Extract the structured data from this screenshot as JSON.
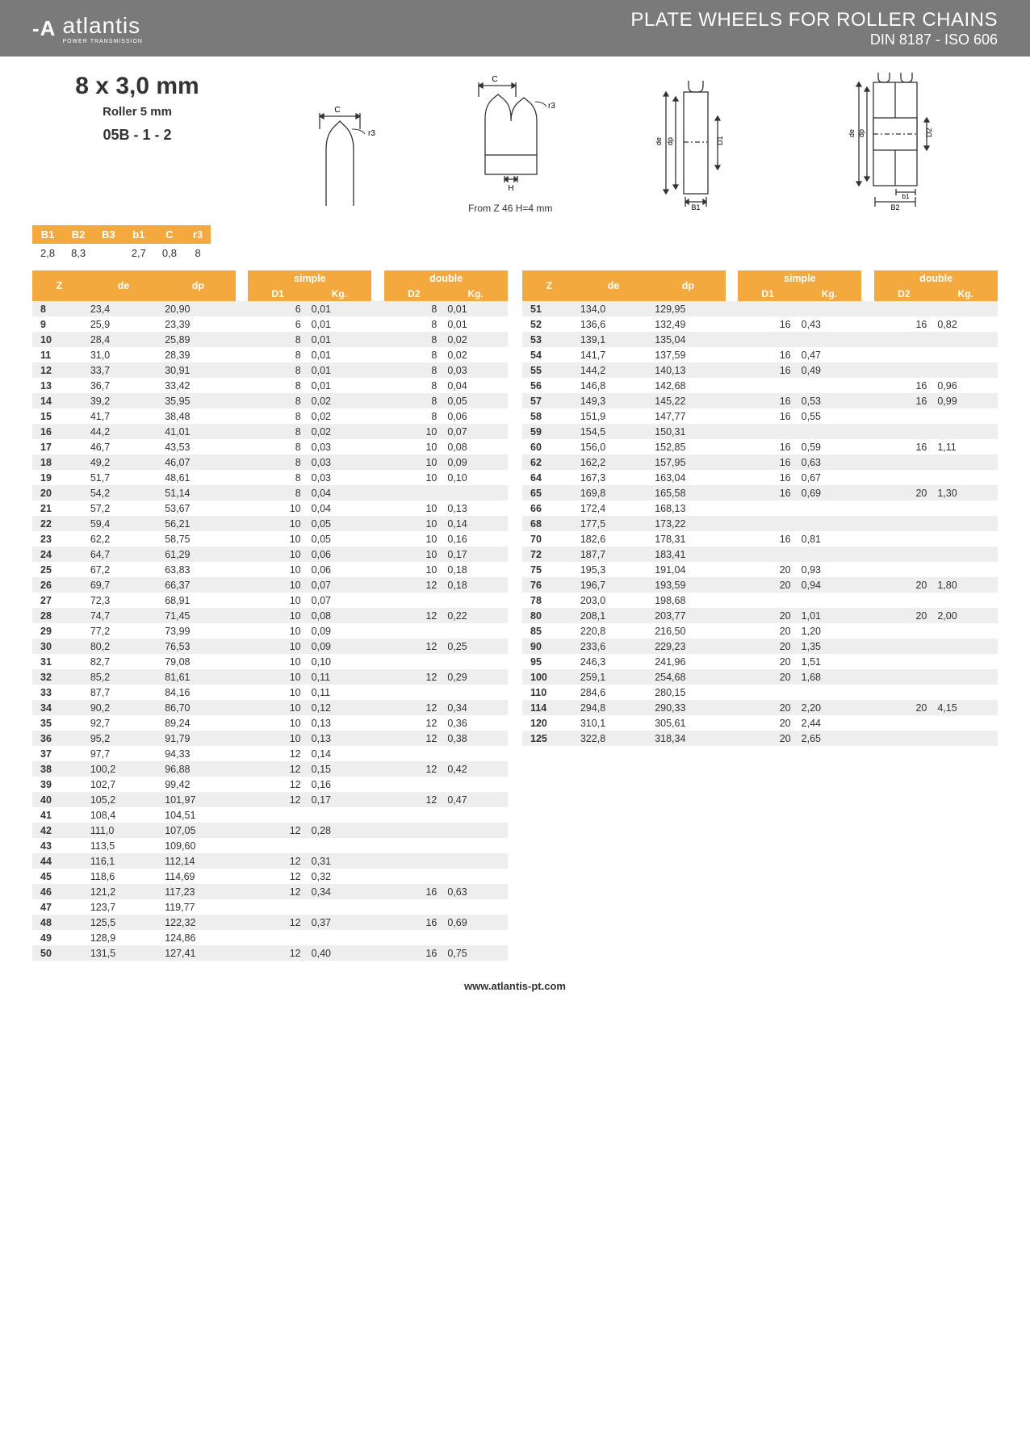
{
  "header": {
    "brand": "atlantis",
    "brand_sub": "POWER TRANSMISSION",
    "title1": "PLATE WHEELS FOR ROLLER CHAINS",
    "title2": "DIN 8187 - ISO 606"
  },
  "spec": {
    "size": "8 x 3,0 mm",
    "roller": "Roller 5 mm",
    "code": "05B - 1 - 2"
  },
  "note_h": "From Z 46 H=4 mm",
  "bs": {
    "headers": [
      "B1",
      "B2",
      "B3",
      "b1",
      "C",
      "r3"
    ],
    "values": [
      "2,8",
      "8,3",
      "",
      "2,7",
      "0,8",
      "8"
    ]
  },
  "table_headers": {
    "z": "Z",
    "de": "de",
    "dp": "dp",
    "simple": "simple",
    "double": "double",
    "d1": "D1",
    "kg": "Kg.",
    "d2": "D2"
  },
  "left": [
    {
      "z": "8",
      "de": "23,4",
      "dp": "20,90",
      "d1": "6",
      "kg1": "0,01",
      "d2": "8",
      "kg2": "0,01"
    },
    {
      "z": "9",
      "de": "25,9",
      "dp": "23,39",
      "d1": "6",
      "kg1": "0,01",
      "d2": "8",
      "kg2": "0,01"
    },
    {
      "z": "10",
      "de": "28,4",
      "dp": "25,89",
      "d1": "8",
      "kg1": "0,01",
      "d2": "8",
      "kg2": "0,02"
    },
    {
      "z": "11",
      "de": "31,0",
      "dp": "28,39",
      "d1": "8",
      "kg1": "0,01",
      "d2": "8",
      "kg2": "0,02"
    },
    {
      "z": "12",
      "de": "33,7",
      "dp": "30,91",
      "d1": "8",
      "kg1": "0,01",
      "d2": "8",
      "kg2": "0,03"
    },
    {
      "z": "13",
      "de": "36,7",
      "dp": "33,42",
      "d1": "8",
      "kg1": "0,01",
      "d2": "8",
      "kg2": "0,04"
    },
    {
      "z": "14",
      "de": "39,2",
      "dp": "35,95",
      "d1": "8",
      "kg1": "0,02",
      "d2": "8",
      "kg2": "0,05"
    },
    {
      "z": "15",
      "de": "41,7",
      "dp": "38,48",
      "d1": "8",
      "kg1": "0,02",
      "d2": "8",
      "kg2": "0,06"
    },
    {
      "z": "16",
      "de": "44,2",
      "dp": "41,01",
      "d1": "8",
      "kg1": "0,02",
      "d2": "10",
      "kg2": "0,07"
    },
    {
      "z": "17",
      "de": "46,7",
      "dp": "43,53",
      "d1": "8",
      "kg1": "0,03",
      "d2": "10",
      "kg2": "0,08"
    },
    {
      "z": "18",
      "de": "49,2",
      "dp": "46,07",
      "d1": "8",
      "kg1": "0,03",
      "d2": "10",
      "kg2": "0,09"
    },
    {
      "z": "19",
      "de": "51,7",
      "dp": "48,61",
      "d1": "8",
      "kg1": "0,03",
      "d2": "10",
      "kg2": "0,10"
    },
    {
      "z": "20",
      "de": "54,2",
      "dp": "51,14",
      "d1": "8",
      "kg1": "0,04",
      "d2": "",
      "kg2": ""
    },
    {
      "z": "21",
      "de": "57,2",
      "dp": "53,67",
      "d1": "10",
      "kg1": "0,04",
      "d2": "10",
      "kg2": "0,13"
    },
    {
      "z": "22",
      "de": "59,4",
      "dp": "56,21",
      "d1": "10",
      "kg1": "0,05",
      "d2": "10",
      "kg2": "0,14"
    },
    {
      "z": "23",
      "de": "62,2",
      "dp": "58,75",
      "d1": "10",
      "kg1": "0,05",
      "d2": "10",
      "kg2": "0,16"
    },
    {
      "z": "24",
      "de": "64,7",
      "dp": "61,29",
      "d1": "10",
      "kg1": "0,06",
      "d2": "10",
      "kg2": "0,17"
    },
    {
      "z": "25",
      "de": "67,2",
      "dp": "63,83",
      "d1": "10",
      "kg1": "0,06",
      "d2": "10",
      "kg2": "0,18"
    },
    {
      "z": "26",
      "de": "69,7",
      "dp": "66,37",
      "d1": "10",
      "kg1": "0,07",
      "d2": "12",
      "kg2": "0,18"
    },
    {
      "z": "27",
      "de": "72,3",
      "dp": "68,91",
      "d1": "10",
      "kg1": "0,07",
      "d2": "",
      "kg2": ""
    },
    {
      "z": "28",
      "de": "74,7",
      "dp": "71,45",
      "d1": "10",
      "kg1": "0,08",
      "d2": "12",
      "kg2": "0,22"
    },
    {
      "z": "29",
      "de": "77,2",
      "dp": "73,99",
      "d1": "10",
      "kg1": "0,09",
      "d2": "",
      "kg2": ""
    },
    {
      "z": "30",
      "de": "80,2",
      "dp": "76,53",
      "d1": "10",
      "kg1": "0,09",
      "d2": "12",
      "kg2": "0,25"
    },
    {
      "z": "31",
      "de": "82,7",
      "dp": "79,08",
      "d1": "10",
      "kg1": "0,10",
      "d2": "",
      "kg2": ""
    },
    {
      "z": "32",
      "de": "85,2",
      "dp": "81,61",
      "d1": "10",
      "kg1": "0,11",
      "d2": "12",
      "kg2": "0,29"
    },
    {
      "z": "33",
      "de": "87,7",
      "dp": "84,16",
      "d1": "10",
      "kg1": "0,11",
      "d2": "",
      "kg2": ""
    },
    {
      "z": "34",
      "de": "90,2",
      "dp": "86,70",
      "d1": "10",
      "kg1": "0,12",
      "d2": "12",
      "kg2": "0,34"
    },
    {
      "z": "35",
      "de": "92,7",
      "dp": "89,24",
      "d1": "10",
      "kg1": "0,13",
      "d2": "12",
      "kg2": "0,36"
    },
    {
      "z": "36",
      "de": "95,2",
      "dp": "91,79",
      "d1": "10",
      "kg1": "0,13",
      "d2": "12",
      "kg2": "0,38"
    },
    {
      "z": "37",
      "de": "97,7",
      "dp": "94,33",
      "d1": "12",
      "kg1": "0,14",
      "d2": "",
      "kg2": ""
    },
    {
      "z": "38",
      "de": "100,2",
      "dp": "96,88",
      "d1": "12",
      "kg1": "0,15",
      "d2": "12",
      "kg2": "0,42"
    },
    {
      "z": "39",
      "de": "102,7",
      "dp": "99,42",
      "d1": "12",
      "kg1": "0,16",
      "d2": "",
      "kg2": ""
    },
    {
      "z": "40",
      "de": "105,2",
      "dp": "101,97",
      "d1": "12",
      "kg1": "0,17",
      "d2": "12",
      "kg2": "0,47"
    },
    {
      "z": "41",
      "de": "108,4",
      "dp": "104,51",
      "d1": "",
      "kg1": "",
      "d2": "",
      "kg2": ""
    },
    {
      "z": "42",
      "de": "111,0",
      "dp": "107,05",
      "d1": "12",
      "kg1": "0,28",
      "d2": "",
      "kg2": ""
    },
    {
      "z": "43",
      "de": "113,5",
      "dp": "109,60",
      "d1": "",
      "kg1": "",
      "d2": "",
      "kg2": ""
    },
    {
      "z": "44",
      "de": "116,1",
      "dp": "112,14",
      "d1": "12",
      "kg1": "0,31",
      "d2": "",
      "kg2": ""
    },
    {
      "z": "45",
      "de": "118,6",
      "dp": "114,69",
      "d1": "12",
      "kg1": "0,32",
      "d2": "",
      "kg2": ""
    },
    {
      "z": "46",
      "de": "121,2",
      "dp": "117,23",
      "d1": "12",
      "kg1": "0,34",
      "d2": "16",
      "kg2": "0,63"
    },
    {
      "z": "47",
      "de": "123,7",
      "dp": "119,77",
      "d1": "",
      "kg1": "",
      "d2": "",
      "kg2": ""
    },
    {
      "z": "48",
      "de": "125,5",
      "dp": "122,32",
      "d1": "12",
      "kg1": "0,37",
      "d2": "16",
      "kg2": "0,69"
    },
    {
      "z": "49",
      "de": "128,9",
      "dp": "124,86",
      "d1": "",
      "kg1": "",
      "d2": "",
      "kg2": ""
    },
    {
      "z": "50",
      "de": "131,5",
      "dp": "127,41",
      "d1": "12",
      "kg1": "0,40",
      "d2": "16",
      "kg2": "0,75"
    }
  ],
  "right": [
    {
      "z": "51",
      "de": "134,0",
      "dp": "129,95",
      "d1": "",
      "kg1": "",
      "d2": "",
      "kg2": ""
    },
    {
      "z": "52",
      "de": "136,6",
      "dp": "132,49",
      "d1": "16",
      "kg1": "0,43",
      "d2": "16",
      "kg2": "0,82"
    },
    {
      "z": "53",
      "de": "139,1",
      "dp": "135,04",
      "d1": "",
      "kg1": "",
      "d2": "",
      "kg2": ""
    },
    {
      "z": "54",
      "de": "141,7",
      "dp": "137,59",
      "d1": "16",
      "kg1": "0,47",
      "d2": "",
      "kg2": ""
    },
    {
      "z": "55",
      "de": "144,2",
      "dp": "140,13",
      "d1": "16",
      "kg1": "0,49",
      "d2": "",
      "kg2": ""
    },
    {
      "z": "56",
      "de": "146,8",
      "dp": "142,68",
      "d1": "",
      "kg1": "",
      "d2": "16",
      "kg2": "0,96"
    },
    {
      "z": "57",
      "de": "149,3",
      "dp": "145,22",
      "d1": "16",
      "kg1": "0,53",
      "d2": "16",
      "kg2": "0,99"
    },
    {
      "z": "58",
      "de": "151,9",
      "dp": "147,77",
      "d1": "16",
      "kg1": "0,55",
      "d2": "",
      "kg2": ""
    },
    {
      "z": "59",
      "de": "154,5",
      "dp": "150,31",
      "d1": "",
      "kg1": "",
      "d2": "",
      "kg2": ""
    },
    {
      "z": "60",
      "de": "156,0",
      "dp": "152,85",
      "d1": "16",
      "kg1": "0,59",
      "d2": "16",
      "kg2": "1,11"
    },
    {
      "z": "62",
      "de": "162,2",
      "dp": "157,95",
      "d1": "16",
      "kg1": "0,63",
      "d2": "",
      "kg2": ""
    },
    {
      "z": "64",
      "de": "167,3",
      "dp": "163,04",
      "d1": "16",
      "kg1": "0,67",
      "d2": "",
      "kg2": ""
    },
    {
      "z": "65",
      "de": "169,8",
      "dp": "165,58",
      "d1": "16",
      "kg1": "0,69",
      "d2": "20",
      "kg2": "1,30"
    },
    {
      "z": "66",
      "de": "172,4",
      "dp": "168,13",
      "d1": "",
      "kg1": "",
      "d2": "",
      "kg2": ""
    },
    {
      "z": "68",
      "de": "177,5",
      "dp": "173,22",
      "d1": "",
      "kg1": "",
      "d2": "",
      "kg2": ""
    },
    {
      "z": "70",
      "de": "182,6",
      "dp": "178,31",
      "d1": "16",
      "kg1": "0,81",
      "d2": "",
      "kg2": ""
    },
    {
      "z": "72",
      "de": "187,7",
      "dp": "183,41",
      "d1": "",
      "kg1": "",
      "d2": "",
      "kg2": ""
    },
    {
      "z": "75",
      "de": "195,3",
      "dp": "191,04",
      "d1": "20",
      "kg1": "0,93",
      "d2": "",
      "kg2": ""
    },
    {
      "z": "76",
      "de": "196,7",
      "dp": "193,59",
      "d1": "20",
      "kg1": "0,94",
      "d2": "20",
      "kg2": "1,80"
    },
    {
      "z": "78",
      "de": "203,0",
      "dp": "198,68",
      "d1": "",
      "kg1": "",
      "d2": "",
      "kg2": ""
    },
    {
      "z": "80",
      "de": "208,1",
      "dp": "203,77",
      "d1": "20",
      "kg1": "1,01",
      "d2": "20",
      "kg2": "2,00"
    },
    {
      "z": "85",
      "de": "220,8",
      "dp": "216,50",
      "d1": "20",
      "kg1": "1,20",
      "d2": "",
      "kg2": ""
    },
    {
      "z": "90",
      "de": "233,6",
      "dp": "229,23",
      "d1": "20",
      "kg1": "1,35",
      "d2": "",
      "kg2": ""
    },
    {
      "z": "95",
      "de": "246,3",
      "dp": "241,96",
      "d1": "20",
      "kg1": "1,51",
      "d2": "",
      "kg2": ""
    },
    {
      "z": "100",
      "de": "259,1",
      "dp": "254,68",
      "d1": "20",
      "kg1": "1,68",
      "d2": "",
      "kg2": ""
    },
    {
      "z": "110",
      "de": "284,6",
      "dp": "280,15",
      "d1": "",
      "kg1": "",
      "d2": "",
      "kg2": ""
    },
    {
      "z": "114",
      "de": "294,8",
      "dp": "290,33",
      "d1": "20",
      "kg1": "2,20",
      "d2": "20",
      "kg2": "4,15"
    },
    {
      "z": "120",
      "de": "310,1",
      "dp": "305,61",
      "d1": "20",
      "kg1": "2,44",
      "d2": "",
      "kg2": ""
    },
    {
      "z": "125",
      "de": "322,8",
      "dp": "318,34",
      "d1": "20",
      "kg1": "2,65",
      "d2": "",
      "kg2": ""
    }
  ],
  "footer": "www.atlantis-pt.com",
  "colors": {
    "header_bg": "#7a7a7a",
    "accent": "#f4a93e",
    "row_alt": "#eeeeee",
    "text": "#333333"
  }
}
